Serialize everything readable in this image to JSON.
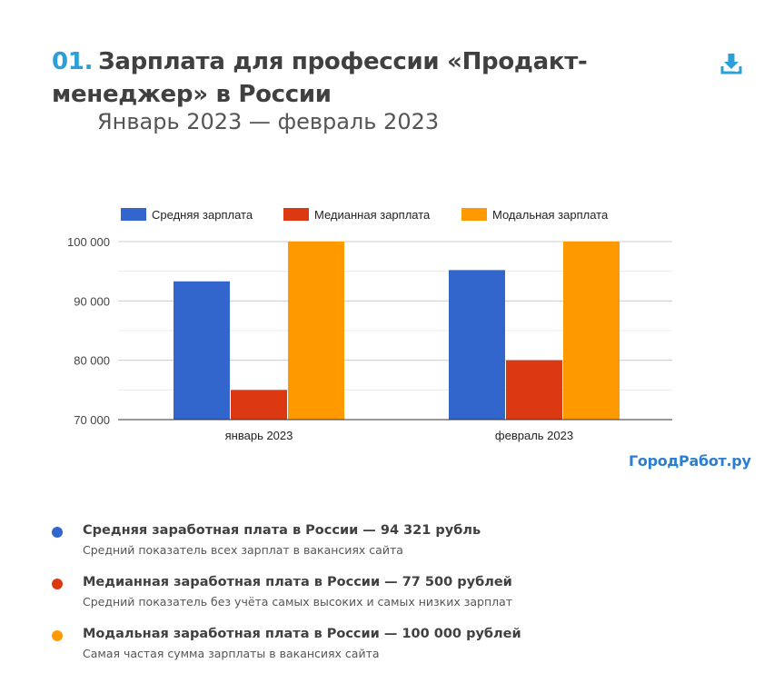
{
  "header": {
    "number": "01.",
    "title": "Зарплата для профессии «Продакт-менеджер» в России",
    "subtitle": "Январь 2023 — февраль 2023",
    "download_icon": "download-icon"
  },
  "chart_data": {
    "type": "bar",
    "categories": [
      "январь 2023",
      "февраль 2023"
    ],
    "series": [
      {
        "name": "Средняя зарплата",
        "color": "#3366cc",
        "values": [
          93300,
          95200
        ]
      },
      {
        "name": "Медианная зарплата",
        "color": "#dc3912",
        "values": [
          75000,
          80000
        ]
      },
      {
        "name": "Модальная зарплата",
        "color": "#ff9900",
        "values": [
          100000,
          100000
        ]
      }
    ],
    "ylim": [
      70000,
      100000
    ],
    "yticks": [
      70000,
      80000,
      90000,
      100000
    ],
    "ytick_labels": [
      "70 000",
      "80 000",
      "90 000",
      "100 000"
    ],
    "legend_position": "top",
    "grid": true,
    "title": "",
    "xlabel": "",
    "ylabel": ""
  },
  "brand": "ГородРабот.ру",
  "notes": [
    {
      "color": "#3366cc",
      "heading": "Средняя заработная плата в России — 94 321 рубль",
      "text": "Средний показатель всех зарплат в вакансиях сайта"
    },
    {
      "color": "#dc3912",
      "heading": "Медианная заработная плата в России — 77 500 рублей",
      "text": "Средний показатель без учёта самых высоких и самых низких зарплат"
    },
    {
      "color": "#ff9900",
      "heading": "Модальная заработная плата в России — 100 000 рублей",
      "text": "Самая частая сумма зарплаты в вакансиях сайта"
    }
  ]
}
